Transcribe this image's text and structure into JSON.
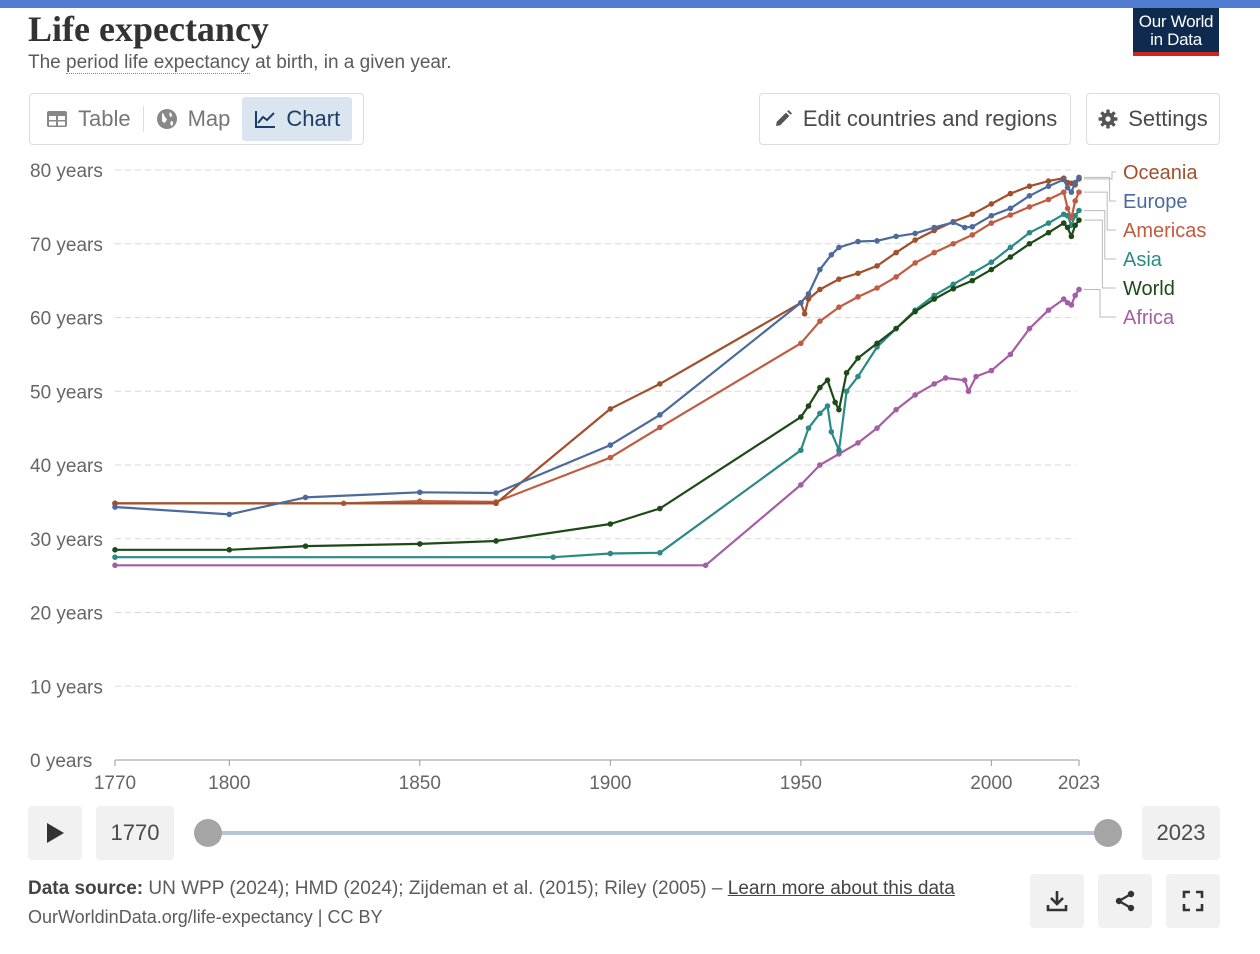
{
  "header": {
    "title": "Life expectancy",
    "subtitle_pre": "The ",
    "subtitle_link": "period life expectancy",
    "subtitle_post": " at birth, in a given year.",
    "logo_line1": "Our World",
    "logo_line2": "in Data"
  },
  "tabs": [
    {
      "label": "Table",
      "icon": "table-icon"
    },
    {
      "label": "Map",
      "icon": "globe-icon"
    },
    {
      "label": "Chart",
      "icon": "line-chart-icon",
      "active": true
    }
  ],
  "toolbar": {
    "edit_label": "Edit countries and regions",
    "settings_label": "Settings"
  },
  "timeline": {
    "start_year": "1770",
    "end_year": "2023"
  },
  "footer": {
    "source_label": "Data source:",
    "source_text": " UN WPP (2024); HMD (2024); Zijdeman et al. (2015); Riley (2005) – ",
    "learn_more": "Learn more about this data",
    "url": "OurWorldinData.org/life-expectancy | CC BY"
  },
  "colors": {
    "accent_bar": "#4f7bd0",
    "logo_bg": "#0e2a4f",
    "logo_accent": "#ce261e",
    "active_tab_bg": "#dbe5f0"
  },
  "chart_data": {
    "type": "line",
    "title": "Life expectancy",
    "xlim": [
      1770,
      2023
    ],
    "ylim": [
      0,
      80
    ],
    "y_ticks": [
      {
        "value": 0,
        "label": "0 years"
      },
      {
        "value": 10,
        "label": "10 years"
      },
      {
        "value": 20,
        "label": "20 years"
      },
      {
        "value": 30,
        "label": "30 years"
      },
      {
        "value": 40,
        "label": "40 years"
      },
      {
        "value": 50,
        "label": "50 years"
      },
      {
        "value": 60,
        "label": "60 years"
      },
      {
        "value": 70,
        "label": "70 years"
      },
      {
        "value": 80,
        "label": "80 years"
      }
    ],
    "x_ticks": [
      {
        "value": 1770,
        "label": "1770"
      },
      {
        "value": 1800,
        "label": "1800"
      },
      {
        "value": 1850,
        "label": "1850"
      },
      {
        "value": 1900,
        "label": "1900"
      },
      {
        "value": 1950,
        "label": "1950"
      },
      {
        "value": 2000,
        "label": "2000"
      },
      {
        "value": 2023,
        "label": "2023"
      }
    ],
    "grid": "horizontal-dashed",
    "legend_position": "right",
    "series": [
      {
        "name": "Oceania",
        "color": "#a2502c",
        "label_order": 0,
        "points": [
          [
            1770,
            34.8
          ],
          [
            1870,
            34.8
          ],
          [
            1900,
            47.6
          ],
          [
            1913,
            51
          ],
          [
            1950,
            62
          ],
          [
            1951,
            60.5
          ],
          [
            1952,
            62.5
          ],
          [
            1955,
            63.8
          ],
          [
            1960,
            65.2
          ],
          [
            1965,
            66
          ],
          [
            1970,
            67
          ],
          [
            1975,
            68.8
          ],
          [
            1980,
            70.5
          ],
          [
            1985,
            71.8
          ],
          [
            1990,
            73
          ],
          [
            1995,
            74
          ],
          [
            2000,
            75.4
          ],
          [
            2005,
            76.8
          ],
          [
            2010,
            77.8
          ],
          [
            2015,
            78.5
          ],
          [
            2019,
            78.9
          ],
          [
            2020,
            78.3
          ],
          [
            2021,
            78.2
          ],
          [
            2022,
            78.0
          ],
          [
            2023,
            78.8
          ]
        ]
      },
      {
        "name": "Europe",
        "color": "#4c6a9c",
        "label_order": 1,
        "points": [
          [
            1770,
            34.3
          ],
          [
            1800,
            33.3
          ],
          [
            1820,
            35.6
          ],
          [
            1850,
            36.3
          ],
          [
            1870,
            36.2
          ],
          [
            1900,
            42.7
          ],
          [
            1913,
            46.8
          ],
          [
            1950,
            62.0
          ],
          [
            1952,
            63.2
          ],
          [
            1955,
            66.5
          ],
          [
            1958,
            68.5
          ],
          [
            1960,
            69.5
          ],
          [
            1965,
            70.3
          ],
          [
            1970,
            70.4
          ],
          [
            1975,
            71.0
          ],
          [
            1980,
            71.4
          ],
          [
            1985,
            72.2
          ],
          [
            1990,
            72.9
          ],
          [
            1993,
            72.2
          ],
          [
            1995,
            72.3
          ],
          [
            2000,
            73.8
          ],
          [
            2005,
            74.8
          ],
          [
            2010,
            76.5
          ],
          [
            2015,
            77.8
          ],
          [
            2019,
            78.7
          ],
          [
            2020,
            77.6
          ],
          [
            2021,
            77.0
          ],
          [
            2022,
            78.3
          ],
          [
            2023,
            79.0
          ]
        ]
      },
      {
        "name": "Americas",
        "color": "#c15b41",
        "label_order": 2,
        "points": [
          [
            1770,
            34.8
          ],
          [
            1830,
            34.8
          ],
          [
            1850,
            35.1
          ],
          [
            1870,
            35.0
          ],
          [
            1900,
            41.0
          ],
          [
            1913,
            45.1
          ],
          [
            1950,
            56.5
          ],
          [
            1955,
            59.5
          ],
          [
            1960,
            61.4
          ],
          [
            1965,
            62.8
          ],
          [
            1970,
            64.0
          ],
          [
            1975,
            65.5
          ],
          [
            1980,
            67.4
          ],
          [
            1985,
            68.8
          ],
          [
            1990,
            70.0
          ],
          [
            1995,
            71.2
          ],
          [
            2000,
            72.8
          ],
          [
            2005,
            73.9
          ],
          [
            2010,
            75.0
          ],
          [
            2015,
            76.0
          ],
          [
            2019,
            77.0
          ],
          [
            2020,
            74.8
          ],
          [
            2021,
            73.5
          ],
          [
            2022,
            75.8
          ],
          [
            2023,
            77.0
          ]
        ]
      },
      {
        "name": "Asia",
        "color": "#2b8a86",
        "label_order": 3,
        "points": [
          [
            1770,
            27.5
          ],
          [
            1885,
            27.5
          ],
          [
            1900,
            28.0
          ],
          [
            1913,
            28.1
          ],
          [
            1950,
            42.0
          ],
          [
            1952,
            45
          ],
          [
            1955,
            47
          ],
          [
            1957,
            48
          ],
          [
            1958,
            44.5
          ],
          [
            1960,
            42.0
          ],
          [
            1962,
            50
          ],
          [
            1965,
            52.0
          ],
          [
            1970,
            56.0
          ],
          [
            1975,
            58.5
          ],
          [
            1980,
            61.0
          ],
          [
            1985,
            63.0
          ],
          [
            1990,
            64.5
          ],
          [
            1995,
            66.0
          ],
          [
            2000,
            67.5
          ],
          [
            2005,
            69.5
          ],
          [
            2010,
            71.5
          ],
          [
            2015,
            72.8
          ],
          [
            2019,
            74.0
          ],
          [
            2020,
            73.8
          ],
          [
            2021,
            72.5
          ],
          [
            2022,
            73.8
          ],
          [
            2023,
            74.5
          ]
        ]
      },
      {
        "name": "World",
        "color": "#1d4a17",
        "label_order": 4,
        "points": [
          [
            1770,
            28.5
          ],
          [
            1800,
            28.5
          ],
          [
            1820,
            29.0
          ],
          [
            1850,
            29.3
          ],
          [
            1870,
            29.7
          ],
          [
            1900,
            32.0
          ],
          [
            1913,
            34.1
          ],
          [
            1950,
            46.5
          ],
          [
            1952,
            48
          ],
          [
            1955,
            50.5
          ],
          [
            1957,
            51.5
          ],
          [
            1959,
            48.5
          ],
          [
            1960,
            47.5
          ],
          [
            1962,
            52.5
          ],
          [
            1965,
            54.5
          ],
          [
            1970,
            56.5
          ],
          [
            1975,
            58.5
          ],
          [
            1980,
            60.8
          ],
          [
            1985,
            62.5
          ],
          [
            1990,
            63.9
          ],
          [
            1995,
            65.0
          ],
          [
            2000,
            66.5
          ],
          [
            2005,
            68.2
          ],
          [
            2010,
            70.0
          ],
          [
            2015,
            71.5
          ],
          [
            2019,
            72.8
          ],
          [
            2020,
            72.2
          ],
          [
            2021,
            71.0
          ],
          [
            2022,
            72.5
          ],
          [
            2023,
            73.2
          ]
        ]
      },
      {
        "name": "Africa",
        "color": "#a45ea3",
        "label_order": 5,
        "points": [
          [
            1770,
            26.4
          ],
          [
            1925,
            26.4
          ],
          [
            1950,
            37.3
          ],
          [
            1955,
            40.0
          ],
          [
            1960,
            41.5
          ],
          [
            1965,
            43.0
          ],
          [
            1970,
            45.0
          ],
          [
            1975,
            47.5
          ],
          [
            1980,
            49.5
          ],
          [
            1985,
            51.0
          ],
          [
            1988,
            51.8
          ],
          [
            1993,
            51.5
          ],
          [
            1994,
            50.0
          ],
          [
            1996,
            52.0
          ],
          [
            2000,
            52.8
          ],
          [
            2005,
            55.0
          ],
          [
            2010,
            58.5
          ],
          [
            2015,
            61.0
          ],
          [
            2019,
            62.5
          ],
          [
            2020,
            62.0
          ],
          [
            2021,
            61.7
          ],
          [
            2022,
            63.0
          ],
          [
            2023,
            63.8
          ]
        ]
      }
    ]
  }
}
